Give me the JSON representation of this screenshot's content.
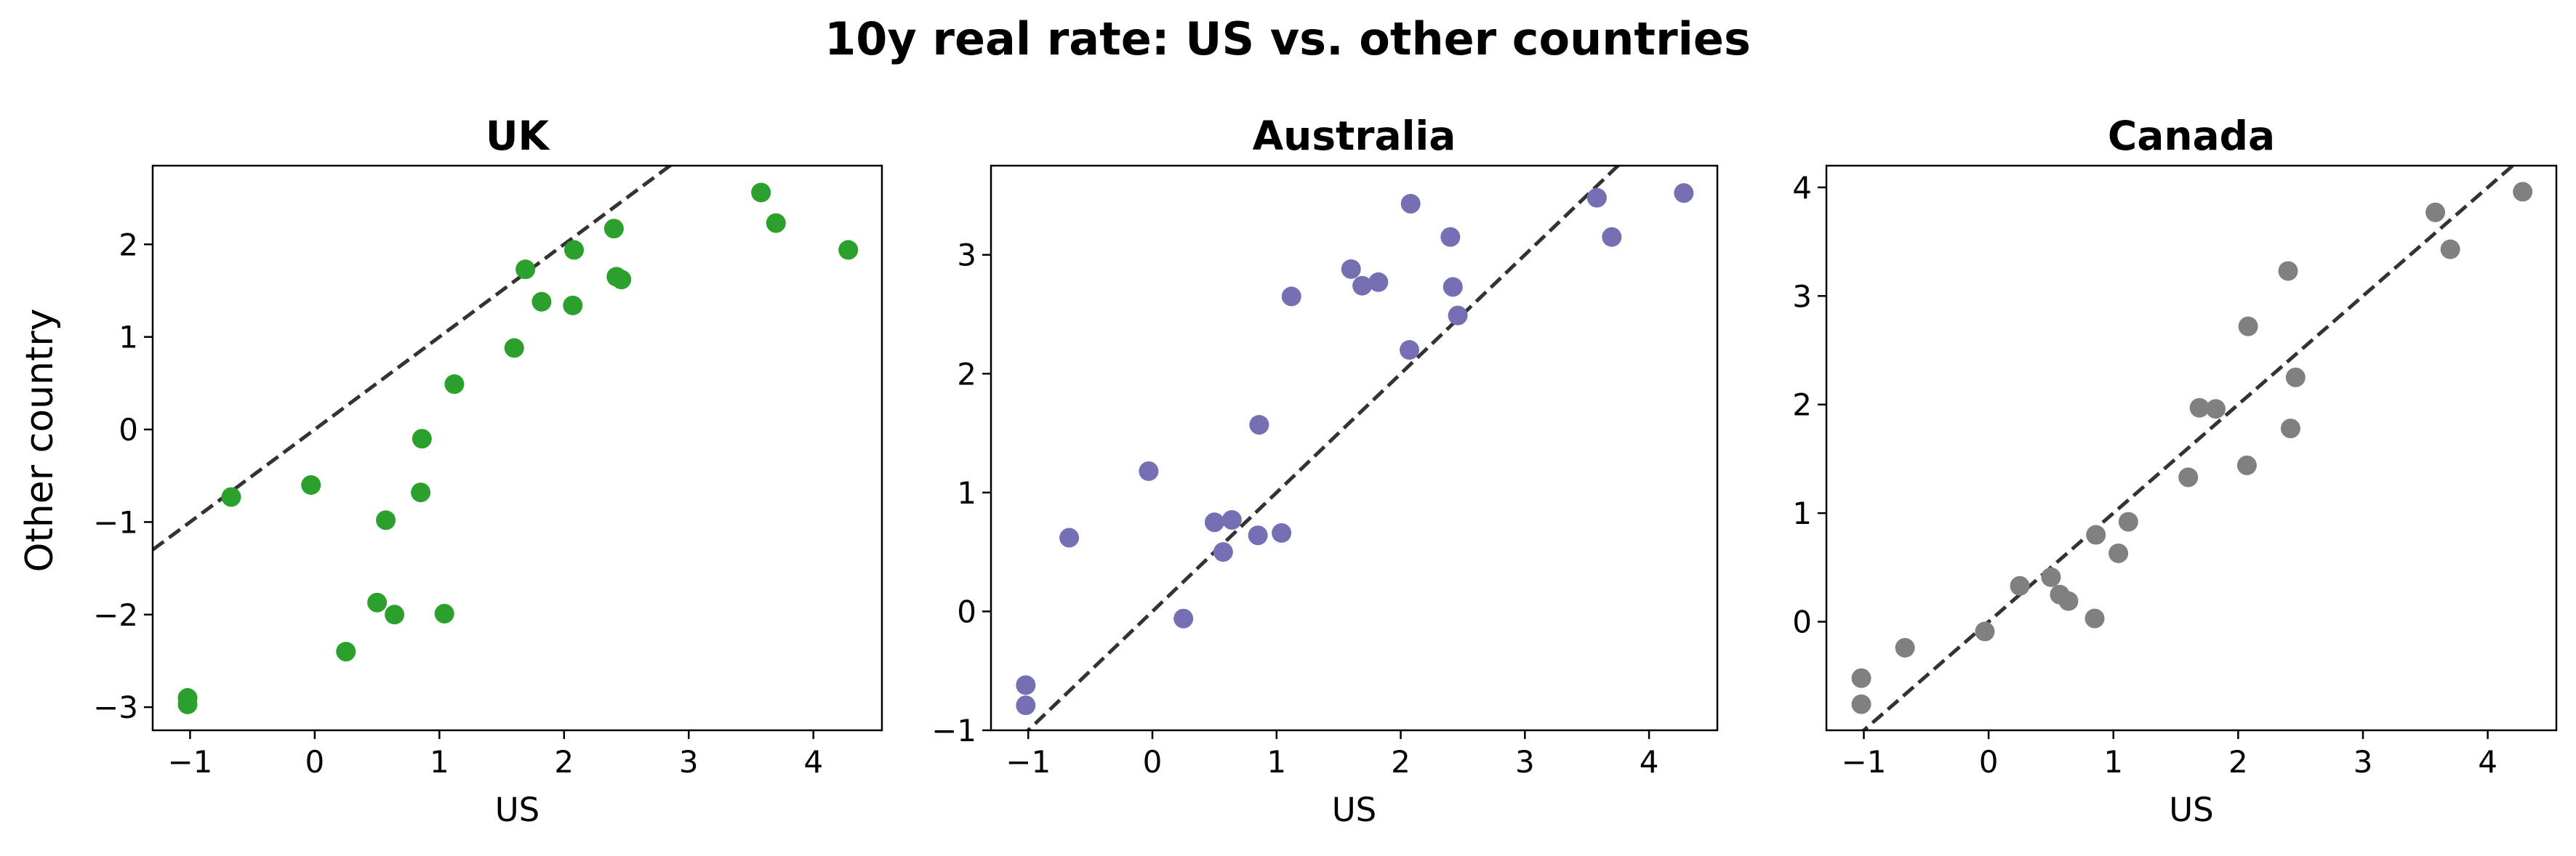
{
  "title": "10y real rate: US vs. other countries",
  "ylabel_shared": "Other country",
  "chart_data": [
    {
      "type": "scatter",
      "title": "UK",
      "xlabel": "US",
      "ylabel": "Other country",
      "color": "#2ca02c",
      "xlim": [
        -1.3,
        4.55
      ],
      "ylim": [
        -3.25,
        2.85
      ],
      "xticks": [
        -1,
        0,
        1,
        2,
        3,
        4
      ],
      "yticks": [
        -3,
        -2,
        -1,
        0,
        1,
        2
      ],
      "reference_line": {
        "style": "dashed",
        "slope": 1,
        "intercept": 0
      },
      "x": [
        -1.02,
        -1.02,
        -0.67,
        -0.03,
        0.25,
        0.5,
        0.57,
        0.64,
        0.85,
        0.86,
        1.04,
        1.12,
        1.6,
        1.69,
        1.82,
        2.07,
        2.08,
        2.4,
        2.42,
        2.46,
        3.58,
        3.7,
        4.28
      ],
      "y": [
        -2.9,
        -2.97,
        -0.73,
        -0.6,
        -2.4,
        -1.87,
        -0.98,
        -2.0,
        -0.68,
        -0.1,
        -1.99,
        0.49,
        0.88,
        1.73,
        1.38,
        1.34,
        1.94,
        2.17,
        1.65,
        1.62,
        2.56,
        2.23,
        1.94
      ]
    },
    {
      "type": "scatter",
      "title": "Australia",
      "xlabel": "US",
      "color": "#7570b3",
      "xlim": [
        -1.3,
        4.55
      ],
      "ylim": [
        -1.0,
        3.75
      ],
      "xticks": [
        -1,
        0,
        1,
        2,
        3,
        4
      ],
      "yticks": [
        -1,
        0,
        1,
        2,
        3
      ],
      "reference_line": {
        "style": "dashed",
        "slope": 1,
        "intercept": 0
      },
      "x": [
        -1.02,
        -1.02,
        -0.67,
        -0.03,
        0.25,
        0.5,
        0.57,
        0.64,
        0.85,
        0.86,
        1.04,
        1.12,
        1.6,
        1.69,
        1.82,
        2.07,
        2.08,
        2.4,
        2.42,
        2.46,
        3.58,
        3.7,
        4.28
      ],
      "y": [
        -0.62,
        -0.79,
        0.62,
        1.18,
        -0.06,
        0.75,
        0.5,
        0.77,
        0.64,
        1.57,
        0.66,
        2.65,
        2.88,
        2.74,
        2.77,
        2.2,
        3.43,
        3.15,
        2.73,
        2.49,
        3.48,
        3.15,
        3.52
      ]
    },
    {
      "type": "scatter",
      "title": "Canada",
      "xlabel": "US",
      "color": "#808080",
      "xlim": [
        -1.3,
        4.55
      ],
      "ylim": [
        -1.0,
        4.2
      ],
      "xticks": [
        -1,
        0,
        1,
        2,
        3,
        4
      ],
      "yticks": [
        0,
        1,
        2,
        3,
        4
      ],
      "reference_line": {
        "style": "dashed",
        "slope": 1,
        "intercept": 0
      },
      "x": [
        -1.02,
        -1.02,
        -0.67,
        -0.03,
        0.25,
        0.5,
        0.57,
        0.64,
        0.85,
        0.86,
        1.04,
        1.12,
        1.6,
        1.69,
        1.82,
        2.07,
        2.08,
        2.4,
        2.42,
        2.46,
        3.58,
        3.7,
        4.28
      ],
      "y": [
        -0.52,
        -0.76,
        -0.24,
        -0.09,
        0.33,
        0.41,
        0.25,
        0.19,
        0.03,
        0.8,
        0.63,
        0.92,
        1.33,
        1.97,
        1.96,
        1.44,
        2.72,
        3.23,
        1.78,
        2.25,
        3.77,
        3.43,
        3.96
      ]
    }
  ]
}
